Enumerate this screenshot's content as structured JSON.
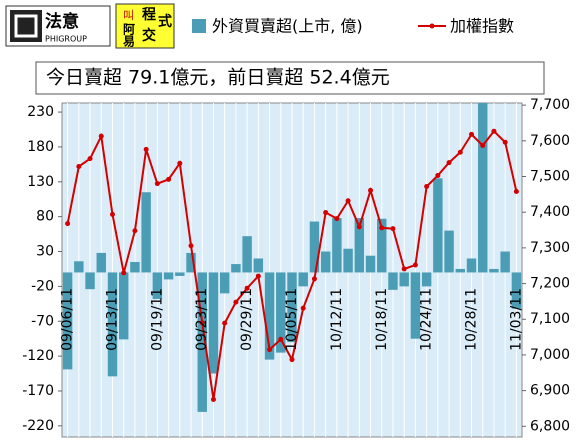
{
  "header": {
    "logo1": {
      "name": "法意",
      "sub": "PHIGROUP"
    },
    "logo2": [
      "程",
      "式",
      "阿",
      "交",
      "叫",
      "易"
    ]
  },
  "chart_data": {
    "type": "bar-line",
    "subtitle": "今日賣超 79.1億元，前日賣超 52.4億元",
    "categories": [
      "09/06/11",
      null,
      null,
      null,
      "09/13/11",
      null,
      null,
      null,
      "09/19/11",
      null,
      null,
      null,
      "09/23/11",
      null,
      null,
      null,
      "09/29/11",
      null,
      null,
      null,
      "10/05/11",
      null,
      null,
      null,
      "10/12/11",
      null,
      null,
      null,
      "10/18/11",
      null,
      null,
      null,
      "10/24/11",
      null,
      null,
      null,
      "10/28/11",
      null,
      null,
      null,
      "11/03/11"
    ],
    "series": [
      {
        "name": "外資買賣超(上市, 億)",
        "color": "#4b9db5",
        "values": [
          -139,
          16,
          -24,
          28,
          -149,
          -96,
          15,
          115,
          -38,
          -10,
          -5,
          28,
          -200,
          -145,
          -30,
          12,
          52,
          20,
          -125,
          -115,
          -100,
          -20,
          73,
          30,
          78,
          34,
          78,
          24,
          77,
          -25,
          -20,
          -95,
          -20,
          135,
          60,
          5,
          20,
          243,
          5,
          30,
          -52
        ]
      },
      {
        "name": "加權指數",
        "color": "#d40000",
        "axis": "y2",
        "values": [
          7368,
          7528,
          7550,
          7613,
          7394,
          7230,
          7348,
          7576,
          7480,
          7492,
          7537,
          7306,
          7090,
          6875,
          7089,
          7148,
          7187,
          7221,
          7015,
          7044,
          6987,
          7131,
          7213,
          7399,
          7382,
          7432,
          7359,
          7461,
          7356,
          7354,
          7241,
          7252,
          7472,
          7503,
          7539,
          7568,
          7618,
          7587,
          7627,
          7596,
          7458
        ]
      }
    ],
    "ylim": [
      -236,
      243
    ],
    "yticks": [
      230,
      180,
      130,
      80,
      30,
      -20,
      -70,
      -120,
      -170,
      -220
    ],
    "y2lim": [
      6770,
      7706
    ],
    "y2ticks": [
      {
        "value": 7700,
        "label": "7,700"
      },
      {
        "value": 7600,
        "label": "7,600"
      },
      {
        "value": 7500,
        "label": "7,500"
      },
      {
        "value": 7400,
        "label": "7,400"
      },
      {
        "value": 7300,
        "label": "7,300"
      },
      {
        "value": 7200,
        "label": "7,200"
      },
      {
        "value": 7100,
        "label": "7,100"
      },
      {
        "value": 7000,
        "label": "7,000"
      },
      {
        "value": 6900,
        "label": "6,900"
      },
      {
        "value": 6800,
        "label": "6,800"
      }
    ],
    "grid": true
  }
}
